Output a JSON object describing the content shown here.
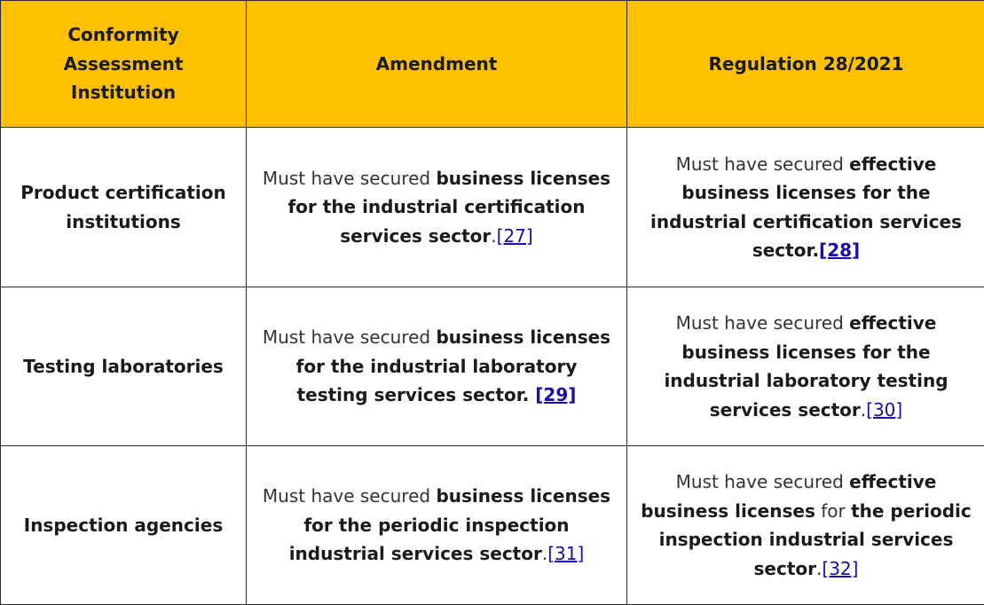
{
  "table": {
    "headers": [
      "Conformity Assessment Institution",
      "Amendment",
      "Regulation 28/2021"
    ],
    "rows": [
      {
        "label": "Product certification institutions",
        "amendment": {
          "prefix": "Must have secured ",
          "bold": "business licenses for the industrial certification services sector",
          "suffix": ".",
          "ref": "[27]"
        },
        "regulation": {
          "prefix": "Must have secured ",
          "bold": "effective business licenses for the industrial certification services sector.",
          "ref": "[28]"
        }
      },
      {
        "label": "Testing laboratories",
        "amendment": {
          "prefix": "Must have secured ",
          "bold": "business licenses for the industrial laboratory testing services sector. ",
          "ref": "[29]"
        },
        "regulation": {
          "prefix": "Must have secured ",
          "bold": "effective business licenses for the industrial laboratory testing services sector",
          "suffix": ".",
          "ref": "[30]"
        }
      },
      {
        "label": "Inspection agencies",
        "amendment": {
          "prefix": "Must have secured ",
          "bold": "business licenses for the periodic inspection industrial services sector",
          "suffix": ".",
          "ref": "[31]"
        },
        "regulation": {
          "prefix": "Must have secured ",
          "bold1": "effective business licenses",
          "middle": " for ",
          "bold2": "the periodic inspection industrial services sector",
          "suffix": ".",
          "ref": "[32]"
        }
      }
    ]
  }
}
